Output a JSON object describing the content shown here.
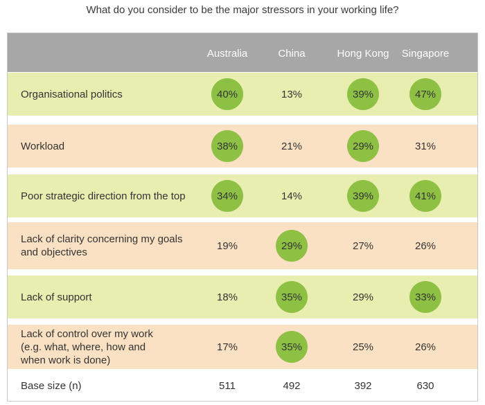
{
  "title": "What do you consider to be the major stressors in your working life?",
  "colors": {
    "header_bg": "#a7a7a7",
    "row_green": "#e8eeb0",
    "row_peach": "#fbe1c3",
    "highlight_circle": "#8dc043"
  },
  "chart_data": {
    "type": "table",
    "title": "What do you consider to be the major stressors in your working life?",
    "columns": [
      "Australia",
      "China",
      "Hong Kong",
      "Singapore"
    ],
    "rows": [
      {
        "label": "Organisational politics",
        "values": [
          "40%",
          "13%",
          "39%",
          "47%"
        ],
        "highlighted": [
          true,
          false,
          true,
          true
        ],
        "shade": "green"
      },
      {
        "label": "Workload",
        "values": [
          "38%",
          "21%",
          "29%",
          "31%"
        ],
        "highlighted": [
          true,
          false,
          true,
          false
        ],
        "shade": "peach"
      },
      {
        "label": "Poor strategic direction from the top",
        "values": [
          "34%",
          "14%",
          "39%",
          "41%"
        ],
        "highlighted": [
          true,
          false,
          true,
          true
        ],
        "shade": "green"
      },
      {
        "label": "Lack of clarity concerning my goals\nand objectives",
        "values": [
          "19%",
          "29%",
          "27%",
          "26%"
        ],
        "highlighted": [
          false,
          true,
          false,
          false
        ],
        "shade": "peach"
      },
      {
        "label": "Lack of support",
        "values": [
          "18%",
          "35%",
          "29%",
          "33%"
        ],
        "highlighted": [
          false,
          true,
          false,
          true
        ],
        "shade": "green"
      },
      {
        "label": "Lack of control over my work\n(e.g. what, where, how and\nwhen work is done)",
        "values": [
          "17%",
          "35%",
          "25%",
          "26%"
        ],
        "highlighted": [
          false,
          true,
          false,
          false
        ],
        "shade": "peach"
      },
      {
        "label": "Base size (n)",
        "values": [
          "511",
          "492",
          "392",
          "630"
        ],
        "highlighted": [
          false,
          false,
          false,
          false
        ],
        "shade": "white"
      }
    ]
  }
}
